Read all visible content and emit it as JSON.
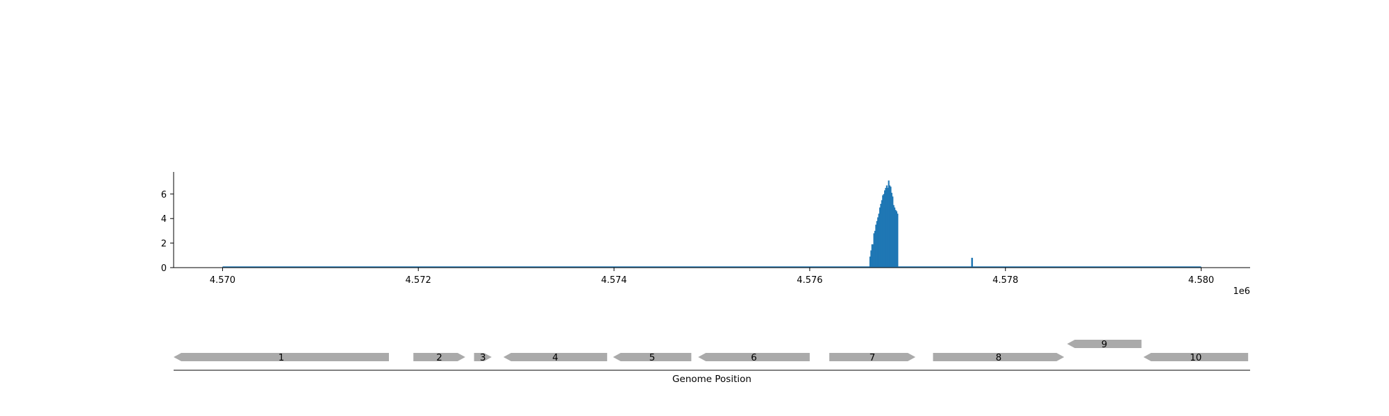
{
  "chart_data": {
    "type": "bar",
    "x_tick_labels": [
      "4.570",
      "4.572",
      "4.574",
      "4.576",
      "4.578",
      "4.580"
    ],
    "x_tick_values": [
      4570000,
      4572000,
      4574000,
      4576000,
      4578000,
      4580000
    ],
    "x_offset_label": "1e6",
    "y_tick_labels": [
      "0",
      "2",
      "4",
      "6"
    ],
    "y_tick_values": [
      0,
      2,
      4,
      6
    ],
    "xlim": [
      4569500,
      4580500
    ],
    "ylim": [
      0,
      7.8
    ],
    "baseline_range": [
      4570000,
      4580000
    ],
    "series_color": "#1f77b4",
    "grid": false,
    "coverage": {
      "x": [
        4576610,
        4576620,
        4576630,
        4576640,
        4576650,
        4576660,
        4576670,
        4576680,
        4576690,
        4576700,
        4576710,
        4576720,
        4576730,
        4576740,
        4576750,
        4576760,
        4576770,
        4576780,
        4576790,
        4576800,
        4576810,
        4576820,
        4576830,
        4576840,
        4576850,
        4576860,
        4576870,
        4576880,
        4576890,
        4577650
      ],
      "y": [
        0.9,
        1.4,
        1.9,
        1.9,
        2.8,
        3.0,
        3.5,
        3.8,
        4.1,
        4.4,
        4.9,
        5.2,
        5.5,
        5.9,
        6.0,
        6.3,
        6.5,
        6.7,
        6.5,
        7.1,
        6.7,
        6.6,
        6.1,
        5.8,
        5.1,
        4.9,
        4.7,
        4.6,
        4.4,
        0.8
      ]
    },
    "genes": [
      {
        "label": "1",
        "start": 4569500,
        "end": 4571700,
        "strand": "-",
        "row": 0
      },
      {
        "label": "2",
        "start": 4571950,
        "end": 4572480,
        "strand": "+",
        "row": 0
      },
      {
        "label": "3",
        "start": 4572570,
        "end": 4572750,
        "strand": "+",
        "row": 0
      },
      {
        "label": "4",
        "start": 4572870,
        "end": 4573930,
        "strand": "-",
        "row": 0
      },
      {
        "label": "5",
        "start": 4573990,
        "end": 4574790,
        "strand": "-",
        "row": 0
      },
      {
        "label": "6",
        "start": 4574860,
        "end": 4576000,
        "strand": "-",
        "row": 0
      },
      {
        "label": "7",
        "start": 4576200,
        "end": 4577080,
        "strand": "+",
        "row": 0
      },
      {
        "label": "8",
        "start": 4577260,
        "end": 4578600,
        "strand": "+",
        "row": 0
      },
      {
        "label": "9",
        "start": 4578630,
        "end": 4579390,
        "strand": "-",
        "row": 1
      },
      {
        "label": "10",
        "start": 4579410,
        "end": 4580480,
        "strand": "-",
        "row": 0
      }
    ],
    "gene_color": "#aaaaaa",
    "track_xlabel": "Genome Position"
  }
}
